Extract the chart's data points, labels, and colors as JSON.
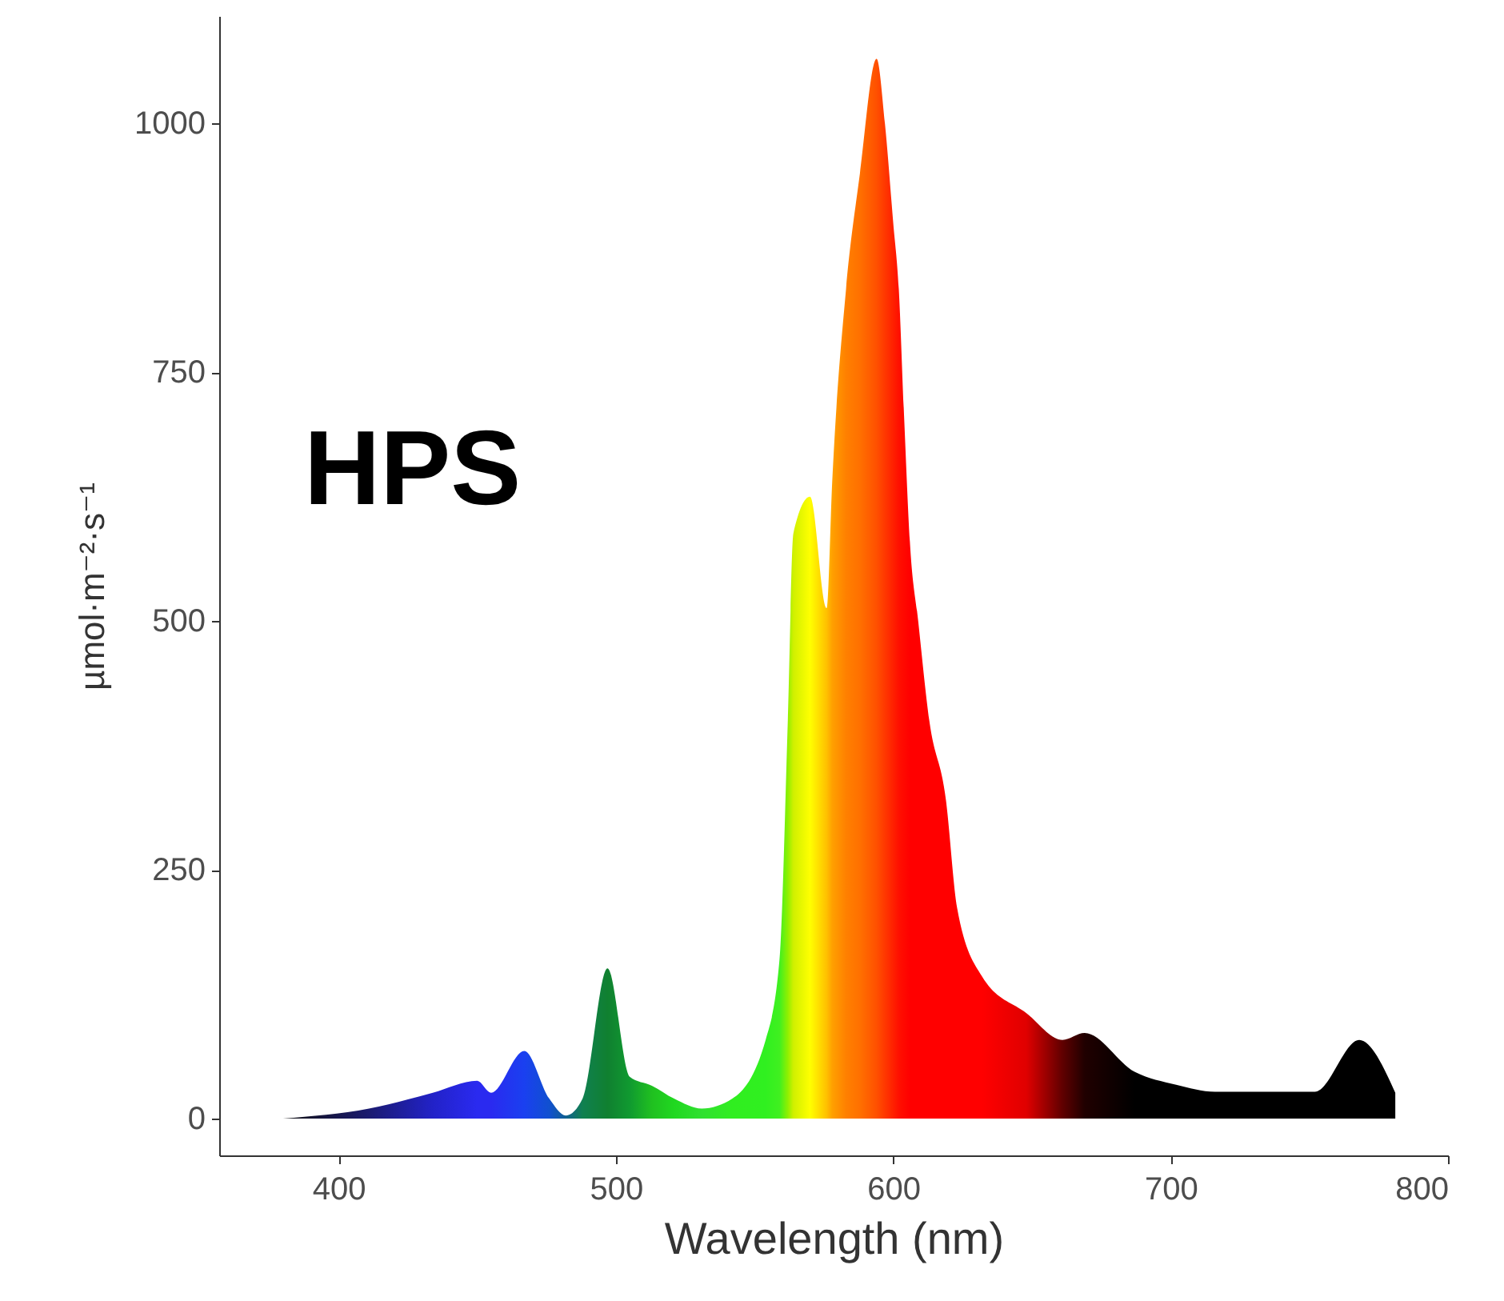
{
  "chart_data": {
    "type": "area",
    "xlabel": "Wavelength (nm)",
    "ylabel": "µmol·m⁻²·s⁻¹",
    "annotations": [
      "HPS"
    ],
    "xlim": [
      357,
      800
    ],
    "xticks": [
      400,
      500,
      600,
      700,
      800
    ],
    "ylim": [
      -37,
      1108
    ],
    "yticks": [
      0,
      250,
      500,
      750,
      1000
    ],
    "grid": false,
    "series": [
      {
        "x": [
          380,
          411,
          434,
          450,
          455,
          467,
          476,
          482,
          488,
          497,
          505,
          513,
          521,
          531,
          542,
          554,
          559,
          562,
          564,
          570,
          576,
          578,
          583,
          588,
          594,
          597,
          600,
          602,
          604,
          606,
          609,
          613,
          619,
          623,
          632,
          648,
          661,
          669,
          687,
          702,
          716,
          752,
          768,
          781
        ],
        "values": [
          0,
          10,
          26,
          38,
          26,
          68,
          20,
          3,
          20,
          151,
          42,
          33,
          20,
          10,
          20,
          79,
          160,
          400,
          588,
          625,
          513,
          640,
          834,
          950,
          1065,
          1000,
          900,
          834,
          700,
          580,
          500,
          400,
          320,
          212,
          143,
          106,
          79,
          86,
          47,
          34,
          27,
          27,
          79,
          26
        ],
        "colors": [
          "#111111",
          "#1a1a70",
          "#2222c8",
          "#2a2af0",
          "#2a2af0",
          "#1a40f0",
          "#1050d0",
          "#106090",
          "#108050",
          "#108030",
          "#109a30",
          "#20c020",
          "#20d820",
          "#30e030",
          "#30ee20",
          "#30f020",
          "#40f020",
          "#90f000",
          "#d0f000",
          "#ffff00",
          "#ffc000",
          "#ffa000",
          "#ff8000",
          "#ff7000",
          "#ff5000",
          "#ff3800",
          "#ff2000",
          "#ff1000",
          "#ff0800",
          "#ff0000",
          "#ff0000",
          "#ff0000",
          "#ff0000",
          "#ff0000",
          "#ff0000",
          "#e00000",
          "#600000",
          "#200000",
          "#000000",
          "#000000",
          "#000000",
          "#000000",
          "#000000",
          "#000000"
        ]
      }
    ]
  }
}
